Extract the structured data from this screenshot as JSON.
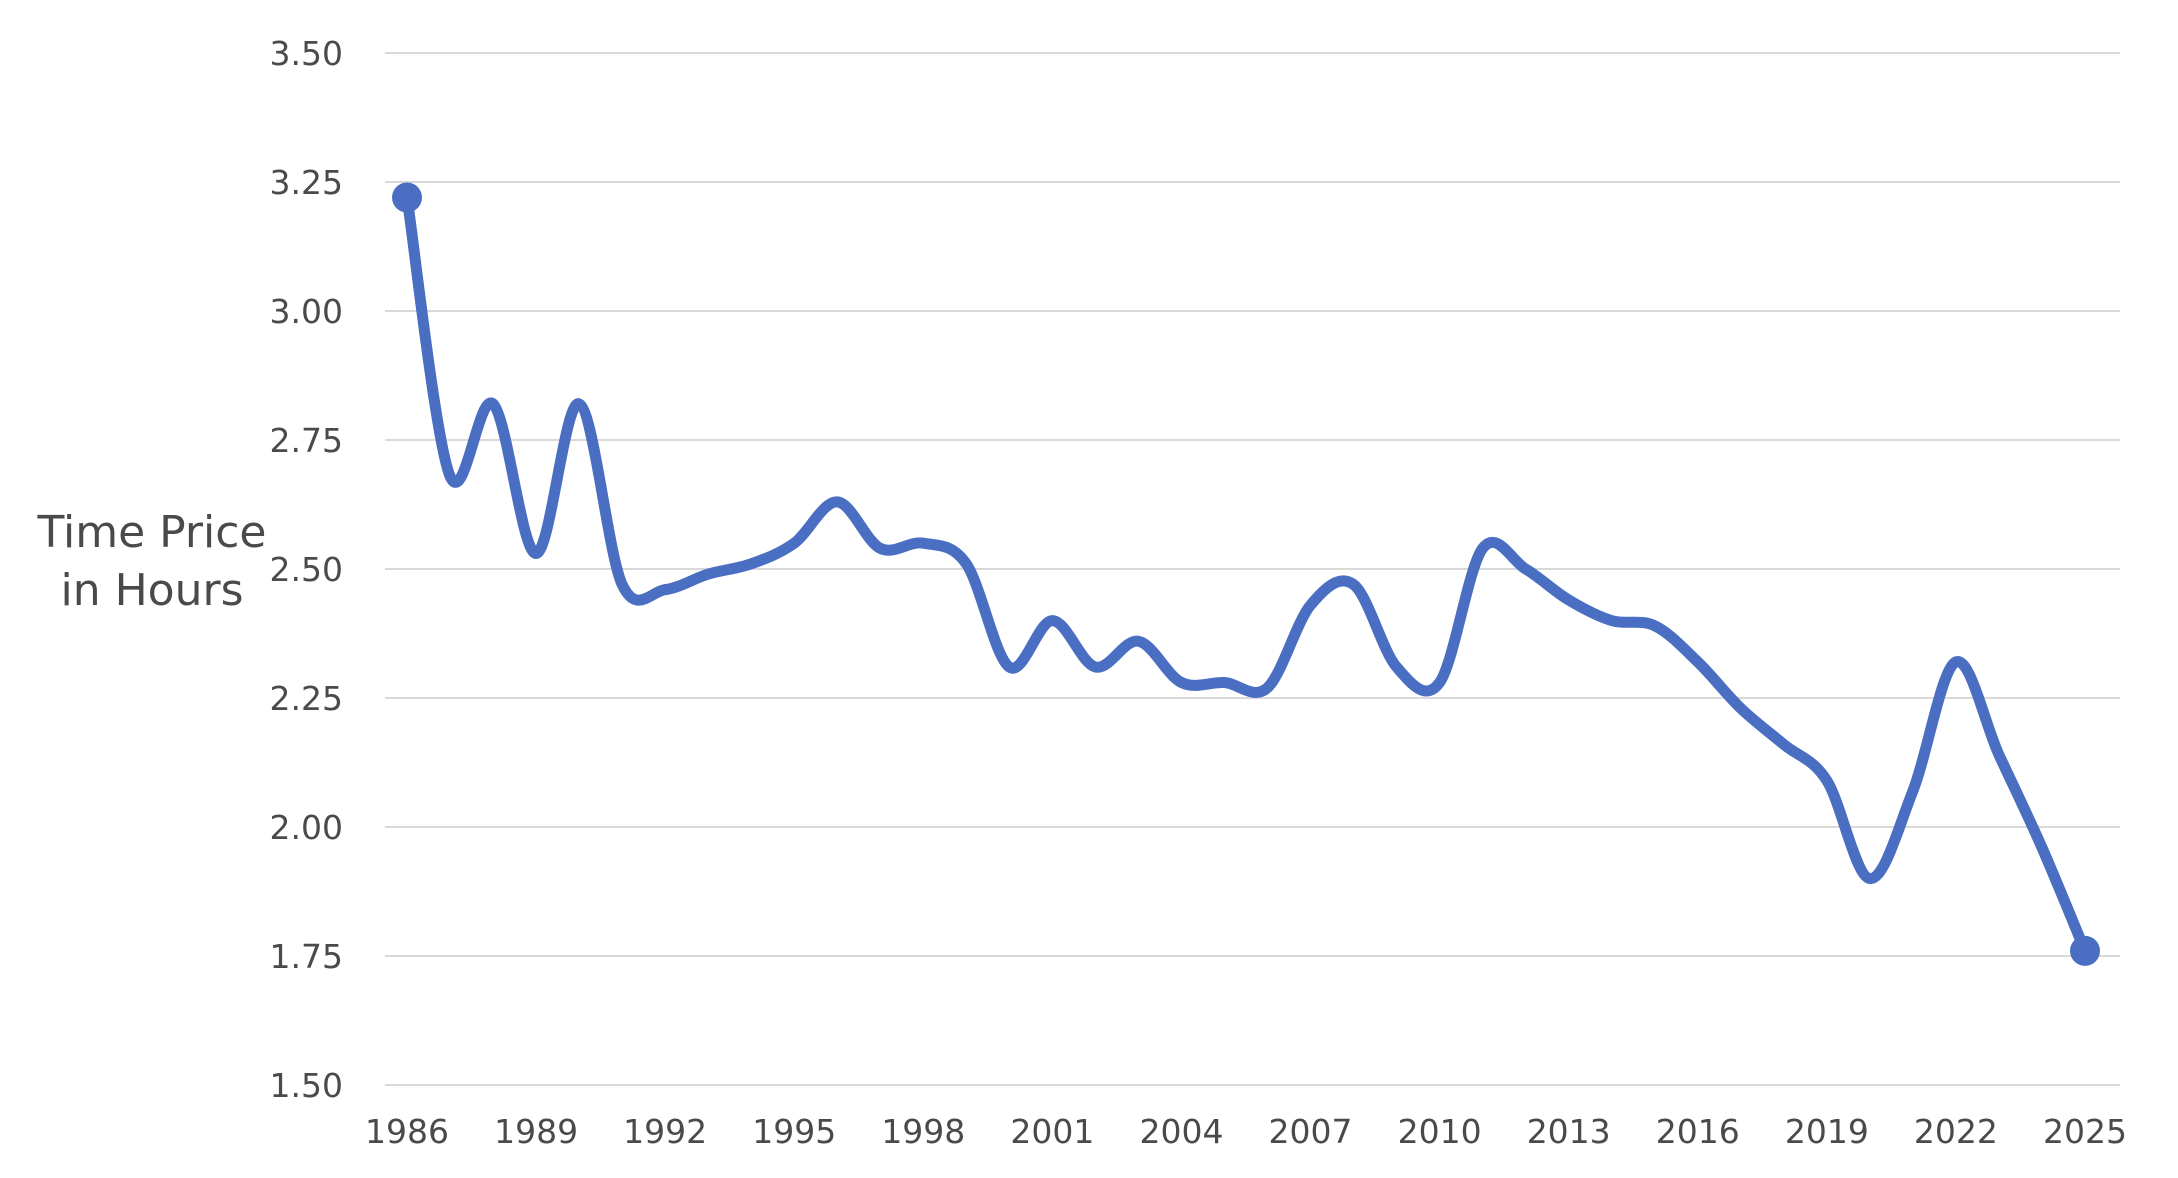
{
  "chart_data": {
    "type": "line",
    "ylabel_lines": [
      "Time Price",
      "in Hours"
    ],
    "ylim": [
      1.5,
      3.5
    ],
    "yticks": [
      1.5,
      1.75,
      2.0,
      2.25,
      2.5,
      2.75,
      3.0,
      3.25,
      3.5
    ],
    "ytick_labels": [
      "1.50",
      "1.75",
      "2.00",
      "2.25",
      "2.50",
      "2.75",
      "3.00",
      "3.25",
      "3.50"
    ],
    "xlim": [
      1986,
      2025
    ],
    "xticks": [
      1986,
      1989,
      1992,
      1995,
      1998,
      2001,
      2004,
      2007,
      2010,
      2013,
      2016,
      2019,
      2022,
      2025
    ],
    "xtick_labels": [
      "1986",
      "1989",
      "1992",
      "1995",
      "1998",
      "2001",
      "2004",
      "2007",
      "2010",
      "2013",
      "2016",
      "2019",
      "2022",
      "2025"
    ],
    "grid": true,
    "legend": "none",
    "line_color": "#4a6fc2",
    "grid_color": "#d9d9d9",
    "end_markers": true,
    "series": [
      {
        "x": [
          1986,
          1987,
          1988,
          1989,
          1990,
          1991,
          1992,
          1993,
          1994,
          1995,
          1996,
          1997,
          1998,
          1999,
          2000,
          2001,
          2002,
          2003,
          2004,
          2005,
          2006,
          2007,
          2008,
          2009,
          2010,
          2011,
          2012,
          2013,
          2014,
          2015,
          2016,
          2017,
          2018,
          2019,
          2020,
          2021,
          2022,
          2023,
          2024,
          2025
        ],
        "values": [
          3.22,
          2.68,
          2.82,
          2.53,
          2.82,
          2.47,
          2.46,
          2.49,
          2.51,
          2.55,
          2.63,
          2.54,
          2.55,
          2.51,
          2.31,
          2.4,
          2.31,
          2.36,
          2.28,
          2.28,
          2.27,
          2.43,
          2.47,
          2.31,
          2.28,
          2.54,
          2.5,
          2.44,
          2.4,
          2.39,
          2.32,
          2.23,
          2.16,
          2.09,
          1.9,
          2.07,
          2.32,
          2.14,
          1.96,
          1.76
        ]
      }
    ]
  }
}
